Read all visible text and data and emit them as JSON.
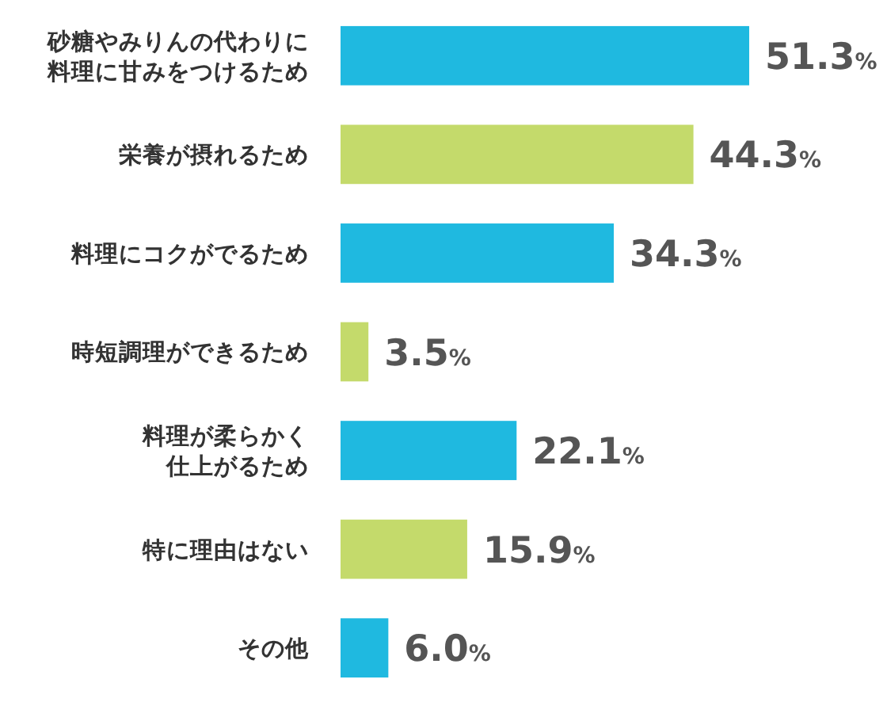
{
  "chart_data": {
    "type": "bar",
    "orientation": "horizontal",
    "categories": [
      "砂糖やみりんの代わりに料理に甘みをつけるため",
      "栄養が摂れるため",
      "料理にコクがでるため",
      "時短調理ができるため",
      "料理が柔らかく仕上がるため",
      "特に理由はない",
      "その他"
    ],
    "values": [
      51.3,
      44.3,
      34.3,
      3.5,
      22.1,
      15.9,
      6.0
    ],
    "colors": [
      "#1fb9e0",
      "#c4da6b",
      "#1fb9e0",
      "#c4da6b",
      "#1fb9e0",
      "#c4da6b",
      "#1fb9e0"
    ],
    "value_labels": [
      "51.3%",
      "44.3%",
      "34.3%",
      "3.5%",
      "22.1%",
      "15.9%",
      "6.0%"
    ]
  }
}
